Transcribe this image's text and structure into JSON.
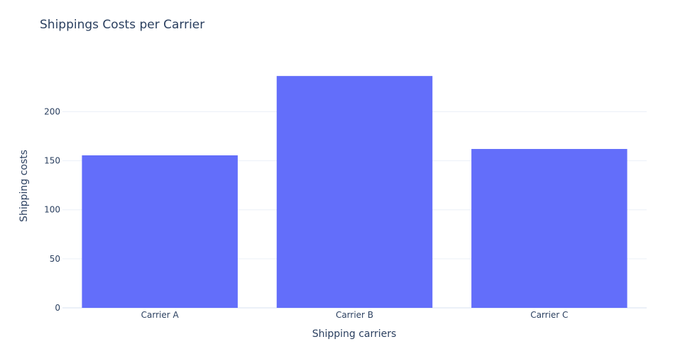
{
  "chart_data": {
    "type": "bar",
    "title": "Shippings Costs per Carrier",
    "xlabel": "Shipping carriers",
    "ylabel": "Shipping costs",
    "categories": [
      "Carrier A",
      "Carrier B",
      "Carrier C"
    ],
    "values": [
      155.5,
      236.4,
      162.0
    ],
    "ylim": [
      0,
      248.8
    ],
    "yticks": [
      0,
      50,
      100,
      150,
      200
    ],
    "grid": true,
    "bar_color": "#636efa"
  }
}
